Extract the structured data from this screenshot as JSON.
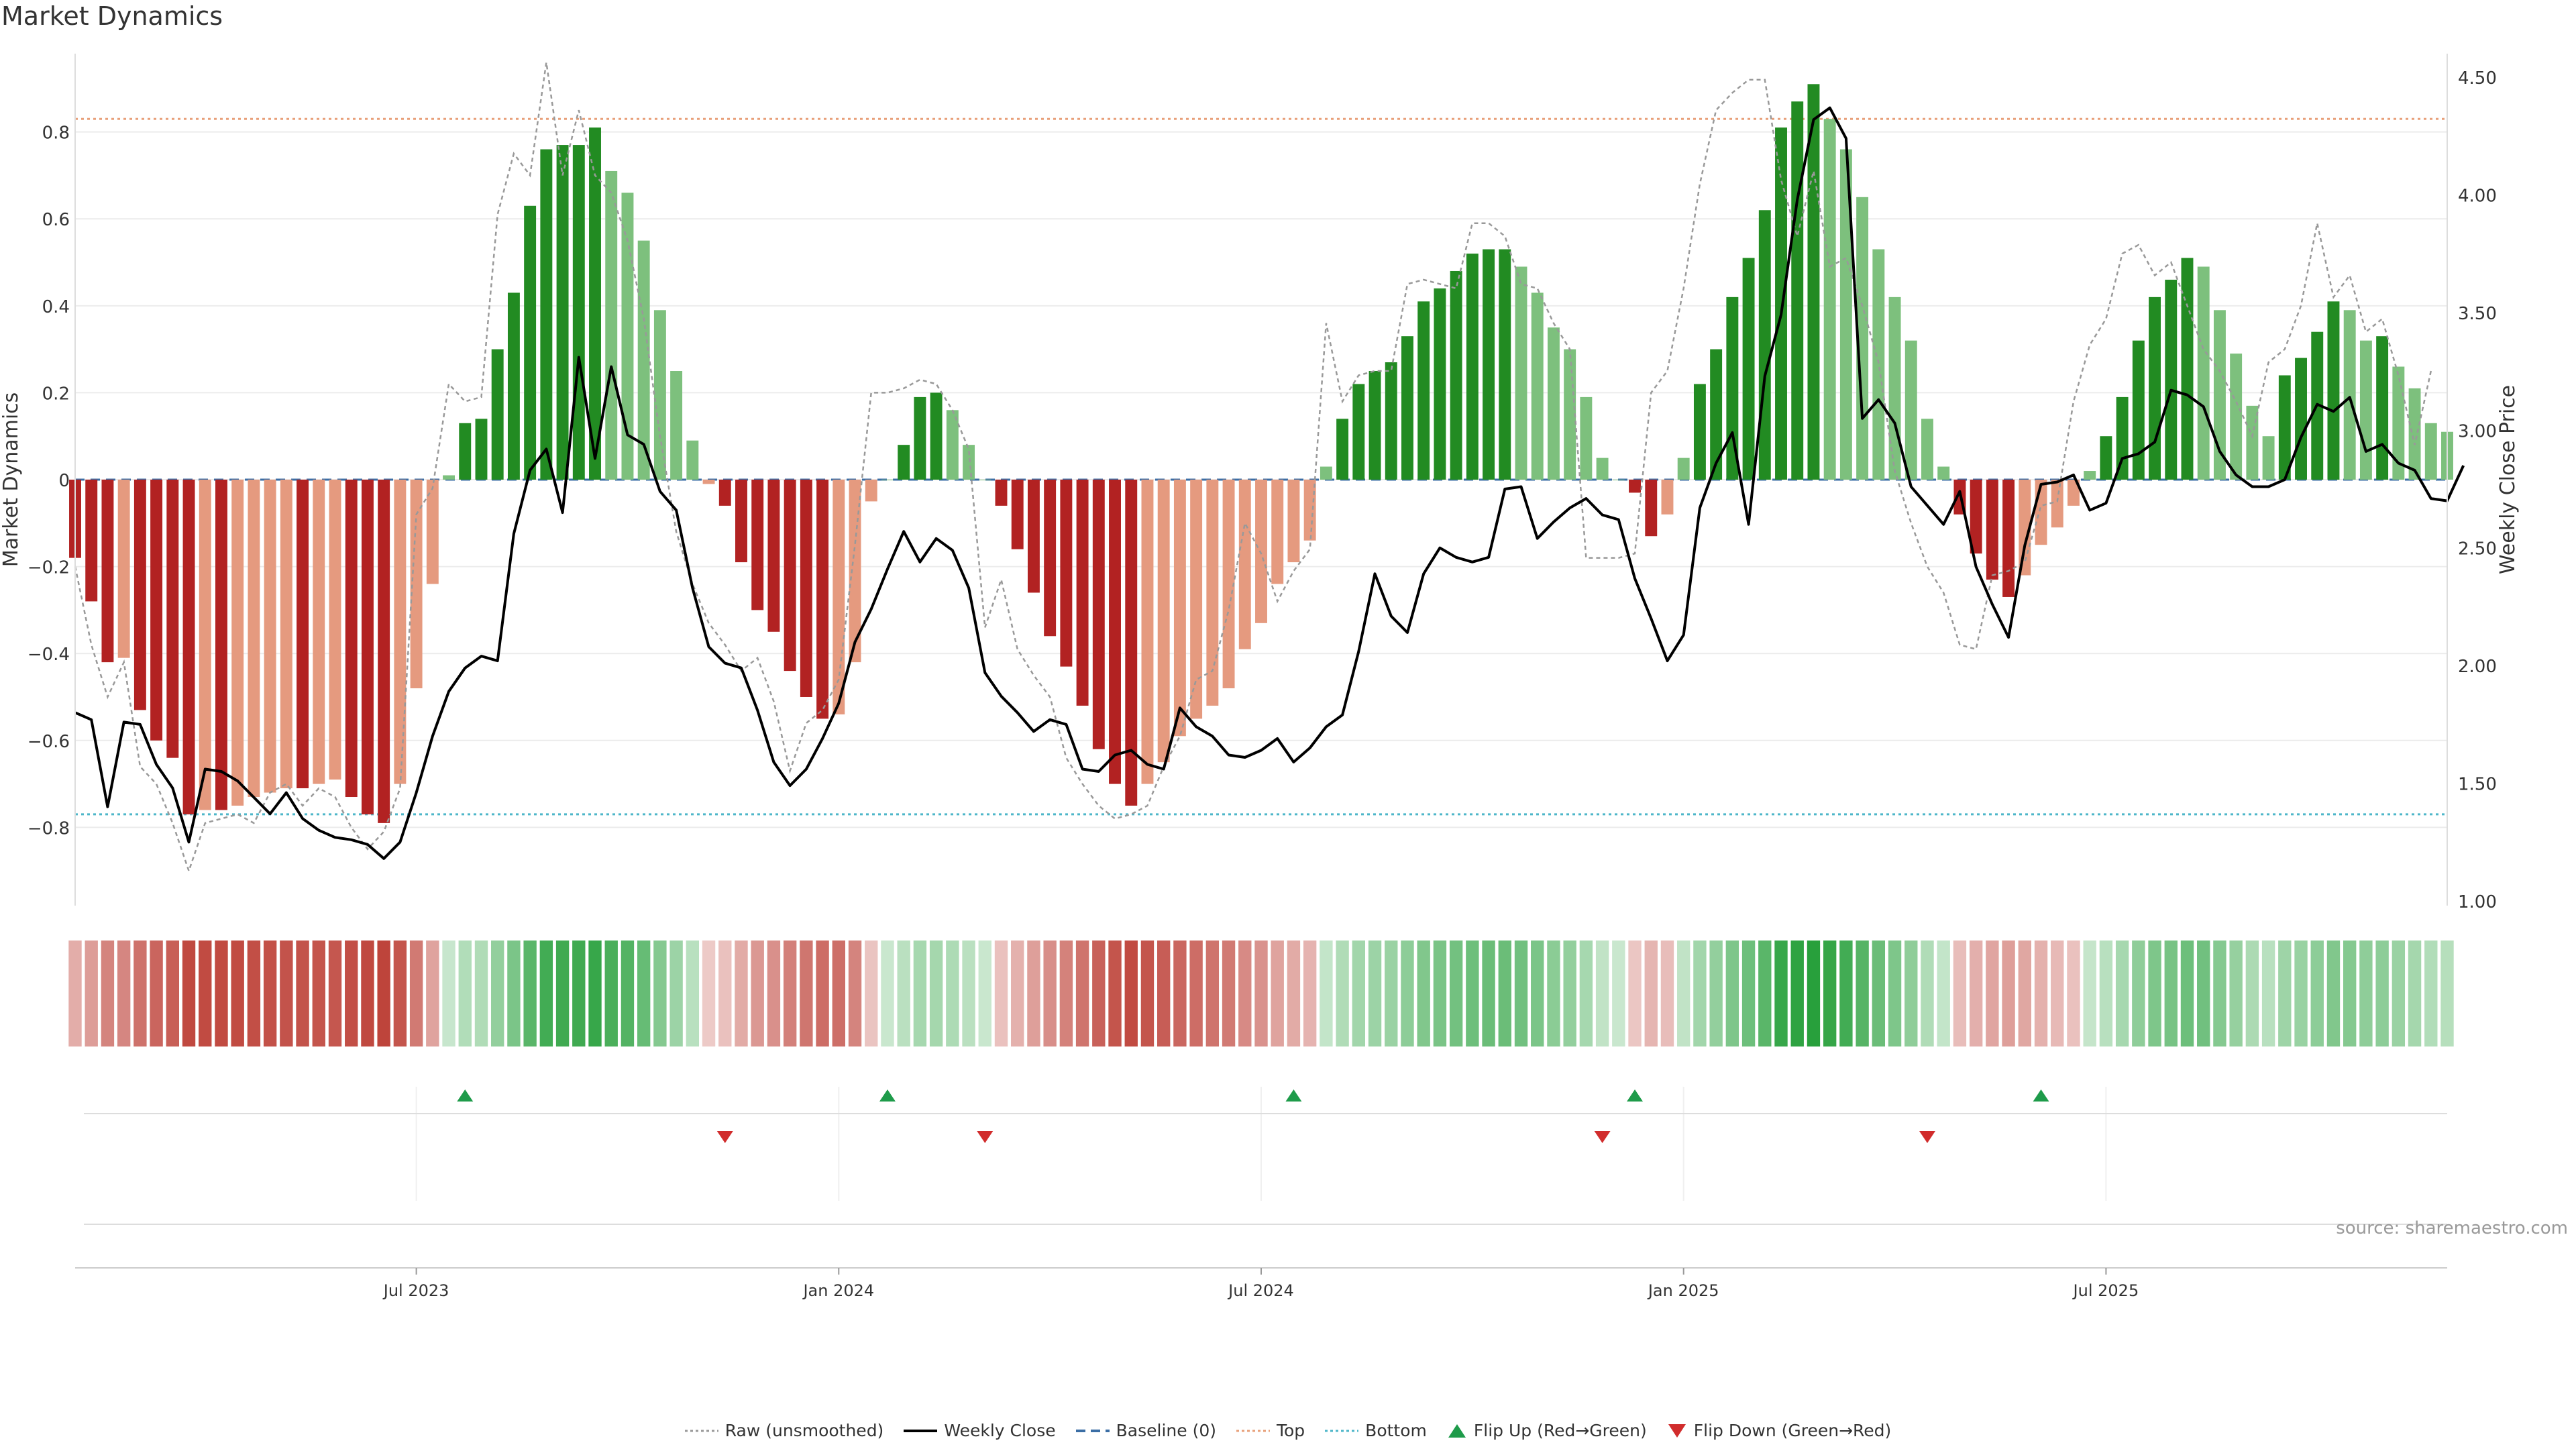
{
  "title": "Market Dynamics",
  "source": "source: sharemaestro.com",
  "colors": {
    "strong_green": "#228B22",
    "weak_green": "#7DC07D",
    "strong_red": "#B22222",
    "weak_red": "#E59A7F",
    "weekly_close": "#000000",
    "raw": "#999999",
    "baseline": "#3B6EA5",
    "top": "#E8A07A",
    "bottom": "#4DB6C9",
    "flip_up": "#1E9B4A",
    "flip_down": "#D12C2C"
  },
  "chart_data": {
    "type": "bar",
    "title": "Market Dynamics",
    "ylabel": "Market Dynamics",
    "y2label": "Weekly Close Price",
    "ylim": [
      -0.98,
      0.98
    ],
    "y2lim": [
      0.98,
      4.6
    ],
    "yticks": [
      "−0.8",
      "−0.6",
      "−0.4",
      "−0.2",
      "0",
      "0.2",
      "0.4",
      "0.6",
      "0.8"
    ],
    "y2ticks": [
      "1.00",
      "1.50",
      "2.00",
      "2.50",
      "3.00",
      "3.50",
      "4.00",
      "4.50"
    ],
    "xticks": [
      "Jul 2023",
      "Jan 2024",
      "Jul 2024",
      "Jan 2025",
      "Jul 2025"
    ],
    "xtick_weeks": [
      21,
      47,
      73,
      99,
      125
    ],
    "top_level": 0.83,
    "bottom_level": -0.77,
    "baseline": 0,
    "grid": "on",
    "legend": "bottom-center",
    "market_dynamics": [
      -0.18,
      -0.28,
      -0.42,
      -0.41,
      -0.53,
      -0.6,
      -0.64,
      -0.77,
      -0.76,
      -0.76,
      -0.75,
      -0.73,
      -0.72,
      -0.71,
      -0.71,
      -0.7,
      -0.69,
      -0.73,
      -0.77,
      -0.79,
      -0.7,
      -0.48,
      -0.24,
      0.01,
      0.13,
      0.14,
      0.3,
      0.43,
      0.63,
      0.76,
      0.77,
      0.77,
      0.81,
      0.71,
      0.66,
      0.55,
      0.39,
      0.25,
      0.09,
      -0.01,
      -0.06,
      -0.19,
      -0.3,
      -0.35,
      -0.44,
      -0.5,
      -0.55,
      -0.54,
      -0.42,
      -0.05,
      0.0,
      0.08,
      0.19,
      0.2,
      0.16,
      0.08,
      0.0,
      -0.06,
      -0.16,
      -0.26,
      -0.36,
      -0.43,
      -0.52,
      -0.62,
      -0.7,
      -0.75,
      -0.7,
      -0.65,
      -0.59,
      -0.55,
      -0.52,
      -0.48,
      -0.39,
      -0.33,
      -0.24,
      -0.19,
      -0.14,
      0.03,
      0.14,
      0.22,
      0.25,
      0.27,
      0.33,
      0.41,
      0.44,
      0.48,
      0.52,
      0.53,
      0.53,
      0.49,
      0.43,
      0.35,
      0.3,
      0.19,
      0.05,
      0.0,
      -0.03,
      -0.13,
      -0.08,
      0.05,
      0.22,
      0.3,
      0.42,
      0.51,
      0.62,
      0.81,
      0.87,
      0.91,
      0.83,
      0.76,
      0.65,
      0.53,
      0.42,
      0.32,
      0.14,
      0.03,
      -0.08,
      -0.17,
      -0.23,
      -0.27,
      -0.22,
      -0.15,
      -0.11,
      -0.06,
      0.02,
      0.1,
      0.19,
      0.32,
      0.42,
      0.46,
      0.51,
      0.49,
      0.39,
      0.29,
      0.17,
      0.1,
      0.24,
      0.28,
      0.34,
      0.41,
      0.39,
      0.32,
      0.33,
      0.26,
      0.21,
      0.13,
      0.11
    ],
    "raw_unsmoothed": [
      -0.2,
      -0.38,
      -0.5,
      -0.42,
      -0.66,
      -0.7,
      -0.79,
      -0.9,
      -0.79,
      -0.78,
      -0.77,
      -0.79,
      -0.72,
      -0.7,
      -0.75,
      -0.71,
      -0.73,
      -0.8,
      -0.85,
      -0.81,
      -0.71,
      -0.08,
      -0.02,
      0.22,
      0.18,
      0.19,
      0.61,
      0.75,
      0.7,
      0.96,
      0.7,
      0.85,
      0.7,
      0.66,
      0.55,
      0.37,
      0.1,
      -0.12,
      -0.24,
      -0.33,
      -0.38,
      -0.44,
      -0.41,
      -0.51,
      -0.67,
      -0.56,
      -0.53,
      -0.46,
      -0.15,
      0.2,
      0.2,
      0.21,
      0.23,
      0.22,
      0.16,
      0.07,
      -0.34,
      -0.23,
      -0.39,
      -0.45,
      -0.5,
      -0.64,
      -0.7,
      -0.75,
      -0.78,
      -0.77,
      -0.75,
      -0.66,
      -0.59,
      -0.46,
      -0.44,
      -0.3,
      -0.1,
      -0.17,
      -0.28,
      -0.21,
      -0.16,
      0.36,
      0.18,
      0.24,
      0.25,
      0.25,
      0.45,
      0.46,
      0.45,
      0.44,
      0.59,
      0.59,
      0.56,
      0.45,
      0.44,
      0.36,
      0.3,
      -0.18,
      -0.18,
      -0.18,
      -0.17,
      0.2,
      0.25,
      0.44,
      0.68,
      0.85,
      0.89,
      0.92,
      0.92,
      0.69,
      0.56,
      0.71,
      0.49,
      0.51,
      0.4,
      0.27,
      0.02,
      -0.1,
      -0.2,
      -0.26,
      -0.38,
      -0.39,
      -0.22,
      -0.21,
      -0.19,
      -0.06,
      -0.05,
      0.18,
      0.31,
      0.37,
      0.52,
      0.54,
      0.47,
      0.5,
      0.4,
      0.3,
      0.25,
      0.18,
      0.1,
      0.27,
      0.3,
      0.4,
      0.59,
      0.42,
      0.47,
      0.34,
      0.37,
      0.24,
      0.08,
      0.25
    ],
    "weekly_close": [
      1.8,
      1.77,
      1.4,
      1.76,
      1.75,
      1.58,
      1.48,
      1.25,
      1.56,
      1.55,
      1.51,
      1.44,
      1.37,
      1.46,
      1.35,
      1.3,
      1.27,
      1.26,
      1.24,
      1.18,
      1.25,
      1.46,
      1.7,
      1.89,
      1.99,
      2.04,
      2.02,
      2.56,
      2.83,
      2.92,
      2.65,
      3.31,
      2.88,
      3.27,
      2.98,
      2.94,
      2.74,
      2.66,
      2.33,
      2.08,
      2.01,
      1.99,
      1.81,
      1.59,
      1.49,
      1.56,
      1.69,
      1.84,
      2.1,
      2.24,
      2.41,
      2.57,
      2.44,
      2.54,
      2.49,
      2.33,
      1.97,
      1.87,
      1.8,
      1.72,
      1.77,
      1.75,
      1.56,
      1.55,
      1.62,
      1.64,
      1.58,
      1.56,
      1.82,
      1.74,
      1.7,
      1.62,
      1.61,
      1.64,
      1.69,
      1.59,
      1.65,
      1.74,
      1.79,
      2.06,
      2.39,
      2.21,
      2.14,
      2.39,
      2.5,
      2.46,
      2.44,
      2.46,
      2.75,
      2.76,
      2.54,
      2.61,
      2.67,
      2.71,
      2.64,
      2.62,
      2.37,
      2.2,
      2.02,
      2.13,
      2.67,
      2.86,
      2.99,
      2.6,
      3.23,
      3.49,
      3.98,
      4.32,
      4.37,
      4.24,
      3.05,
      3.13,
      3.03,
      2.76,
      2.68,
      2.6,
      2.74,
      2.42,
      2.26,
      2.12,
      2.51,
      2.77,
      2.78,
      2.81,
      2.66,
      2.69,
      2.88,
      2.9,
      2.95,
      3.17,
      3.15,
      3.1,
      2.91,
      2.81,
      2.76,
      2.76,
      2.79,
      2.97,
      3.11,
      3.08,
      3.14,
      2.91,
      2.94,
      2.86,
      2.83,
      2.71,
      2.7,
      2.85
    ],
    "flips": [
      {
        "type": "up",
        "week": 24
      },
      {
        "type": "down",
        "week": 40
      },
      {
        "type": "up",
        "week": 50
      },
      {
        "type": "down",
        "week": 56
      },
      {
        "type": "up",
        "week": 75
      },
      {
        "type": "down",
        "week": 94
      },
      {
        "type": "up",
        "week": 96
      },
      {
        "type": "down",
        "week": 114
      },
      {
        "type": "up",
        "week": 121
      }
    ],
    "legend_entries": [
      "Raw (unsmoothed)",
      "Weekly Close",
      "Baseline (0)",
      "Top",
      "Bottom",
      "Flip Up (Red→Green)",
      "Flip Down (Green→Red)"
    ]
  }
}
